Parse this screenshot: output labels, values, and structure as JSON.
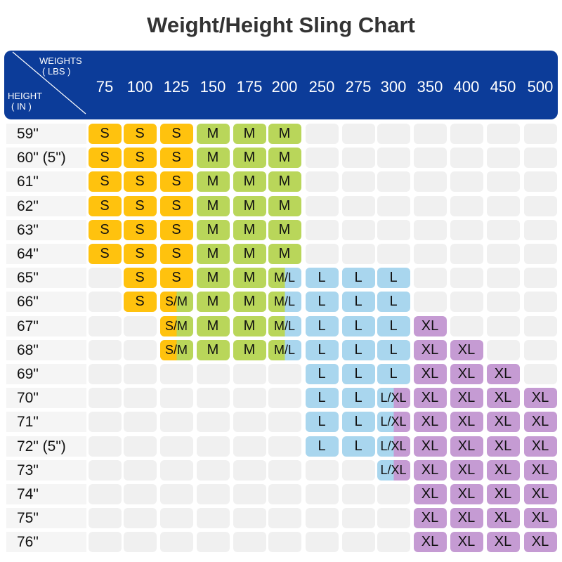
{
  "title": "Weight/Height Sling Chart",
  "header": {
    "weights_label": "WEIGHTS",
    "lbs_label": "( LBS )",
    "height_label": "HEIGHT",
    "in_label": "( IN )"
  },
  "colors": {
    "header_bg": "#0c3c99",
    "S": "#ffc20e",
    "M": "#b9d65a",
    "L": "#a9d6ee",
    "XL": "#c59bd3",
    "empty": "#f0f0f0"
  },
  "chart_data": {
    "type": "table",
    "title": "Weight/Height Sling Chart",
    "xlabel": "WEIGHTS ( LBS )",
    "ylabel": "HEIGHT ( IN )",
    "weights": [
      "75",
      "100",
      "125",
      "150",
      "175",
      "200",
      "250",
      "275",
      "300",
      "350",
      "400",
      "450",
      "500"
    ],
    "heights": [
      "59\"",
      "60\" (5\")",
      "61\"",
      "62\"",
      "63\"",
      "64\"",
      "65\"",
      "66\"",
      "67\"",
      "68\"",
      "69\"",
      "70\"",
      "71\"",
      "72\" (5\")",
      "73\"",
      "74\"",
      "75\"",
      "76\""
    ],
    "sizes": [
      [
        "S",
        "S",
        "S",
        "M",
        "M",
        "M",
        "",
        "",
        "",
        "",
        "",
        "",
        ""
      ],
      [
        "S",
        "S",
        "S",
        "M",
        "M",
        "M",
        "",
        "",
        "",
        "",
        "",
        "",
        ""
      ],
      [
        "S",
        "S",
        "S",
        "M",
        "M",
        "M",
        "",
        "",
        "",
        "",
        "",
        "",
        ""
      ],
      [
        "S",
        "S",
        "S",
        "M",
        "M",
        "M",
        "",
        "",
        "",
        "",
        "",
        "",
        ""
      ],
      [
        "S",
        "S",
        "S",
        "M",
        "M",
        "M",
        "",
        "",
        "",
        "",
        "",
        "",
        ""
      ],
      [
        "S",
        "S",
        "S",
        "M",
        "M",
        "M",
        "",
        "",
        "",
        "",
        "",
        "",
        ""
      ],
      [
        "",
        "S",
        "S",
        "M",
        "M",
        "M/L",
        "L",
        "L",
        "L",
        "",
        "",
        "",
        ""
      ],
      [
        "",
        "S",
        "S/M",
        "M",
        "M",
        "M/L",
        "L",
        "L",
        "L",
        "",
        "",
        "",
        ""
      ],
      [
        "",
        "",
        "S/M",
        "M",
        "M",
        "M/L",
        "L",
        "L",
        "L",
        "XL",
        "",
        "",
        ""
      ],
      [
        "",
        "",
        "S/M",
        "M",
        "M",
        "M/L",
        "L",
        "L",
        "L",
        "XL",
        "XL",
        "",
        ""
      ],
      [
        "",
        "",
        "",
        "",
        "",
        "",
        "L",
        "L",
        "L",
        "XL",
        "XL",
        "XL",
        ""
      ],
      [
        "",
        "",
        "",
        "",
        "",
        "",
        "L",
        "L",
        "L/XL",
        "XL",
        "XL",
        "XL",
        "XL"
      ],
      [
        "",
        "",
        "",
        "",
        "",
        "",
        "L",
        "L",
        "L/XL",
        "XL",
        "XL",
        "XL",
        "XL"
      ],
      [
        "",
        "",
        "",
        "",
        "",
        "",
        "L",
        "L",
        "L/XL",
        "XL",
        "XL",
        "XL",
        "XL"
      ],
      [
        "",
        "",
        "",
        "",
        "",
        "",
        "",
        "",
        "L/XL",
        "XL",
        "XL",
        "XL",
        "XL"
      ],
      [
        "",
        "",
        "",
        "",
        "",
        "",
        "",
        "",
        "",
        "XL",
        "XL",
        "XL",
        "XL"
      ],
      [
        "",
        "",
        "",
        "",
        "",
        "",
        "",
        "",
        "",
        "XL",
        "XL",
        "XL",
        "XL"
      ],
      [
        "",
        "",
        "",
        "",
        "",
        "",
        "",
        "",
        "",
        "XL",
        "XL",
        "XL",
        "XL"
      ]
    ]
  }
}
